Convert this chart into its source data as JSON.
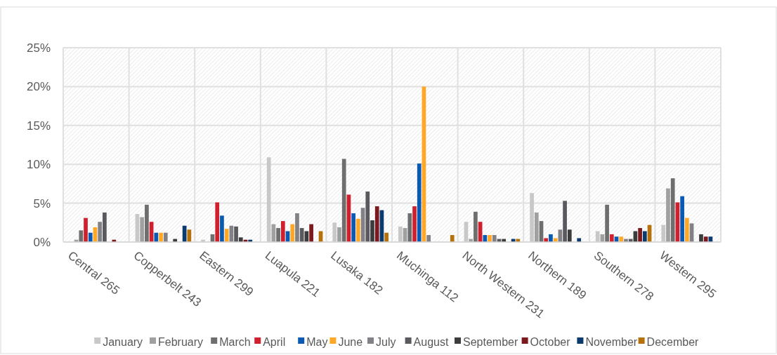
{
  "chart_data": {
    "type": "bar",
    "categories": [
      "Central 265",
      "Copperbelt 243",
      "Eastern 299",
      "Luapula 221",
      "Lusaka 182",
      "Muchinga 112",
      "North Western 231",
      "Northern 189",
      "Southern 278",
      "Western 295"
    ],
    "series": [
      {
        "name": "January",
        "color": "#c8c8c8",
        "values": [
          null,
          3.6,
          0.3,
          10.9,
          2.5,
          2.0,
          2.6,
          6.3,
          1.4,
          2.2
        ]
      },
      {
        "name": "February",
        "color": "#a0a0a0",
        "values": [
          0.3,
          3.2,
          null,
          2.3,
          1.9,
          1.8,
          0.4,
          3.8,
          1.0,
          6.9
        ]
      },
      {
        "name": "March",
        "color": "#6e6e6e",
        "values": [
          1.5,
          4.8,
          1.0,
          1.8,
          10.7,
          3.7,
          3.9,
          2.7,
          4.8,
          8.2
        ]
      },
      {
        "name": "April",
        "color": "#d0202e",
        "values": [
          3.1,
          2.6,
          5.1,
          2.7,
          6.1,
          4.6,
          2.6,
          0.5,
          1.0,
          5.1
        ]
      },
      {
        "name": "May",
        "color": "#0a5ab4",
        "values": [
          1.2,
          1.2,
          3.4,
          1.4,
          3.7,
          10.1,
          0.9,
          1.0,
          0.7,
          5.9
        ]
      },
      {
        "name": "June",
        "color": "#ffa827",
        "values": [
          1.9,
          1.2,
          1.7,
          2.3,
          3.0,
          20.0,
          0.9,
          0.5,
          0.7,
          3.1
        ]
      },
      {
        "name": "July",
        "color": "#828286",
        "values": [
          2.6,
          1.2,
          2.1,
          3.7,
          4.4,
          0.9,
          0.9,
          1.6,
          0.4,
          2.4
        ]
      },
      {
        "name": "August",
        "color": "#5a5a5e",
        "values": [
          3.8,
          null,
          2.0,
          1.8,
          6.5,
          null,
          0.4,
          5.3,
          0.4,
          null
        ]
      },
      {
        "name": "September",
        "color": "#3c3c3c",
        "values": [
          null,
          0.4,
          0.6,
          1.4,
          2.8,
          null,
          0.4,
          1.6,
          1.4,
          1.0
        ]
      },
      {
        "name": "October",
        "color": "#7a1a1e",
        "values": [
          0.3,
          null,
          0.3,
          2.3,
          4.6,
          null,
          null,
          null,
          1.8,
          0.7
        ]
      },
      {
        "name": "November",
        "color": "#0a3a6e",
        "values": [
          null,
          2.1,
          0.3,
          null,
          4.1,
          null,
          0.4,
          0.5,
          1.4,
          0.7
        ]
      },
      {
        "name": "December",
        "color": "#b5720a",
        "values": [
          null,
          1.6,
          null,
          1.4,
          1.2,
          0.9,
          0.4,
          null,
          2.2,
          null
        ]
      }
    ],
    "ylim": [
      0,
      25
    ],
    "yticks": [
      {
        "value": 0,
        "label": "0%"
      },
      {
        "value": 5,
        "label": "5%"
      },
      {
        "value": 10,
        "label": "10%"
      },
      {
        "value": 15,
        "label": "15%"
      },
      {
        "value": 20,
        "label": "20%"
      },
      {
        "value": 25,
        "label": "25%"
      }
    ],
    "grid": true,
    "legend": "bottom"
  }
}
